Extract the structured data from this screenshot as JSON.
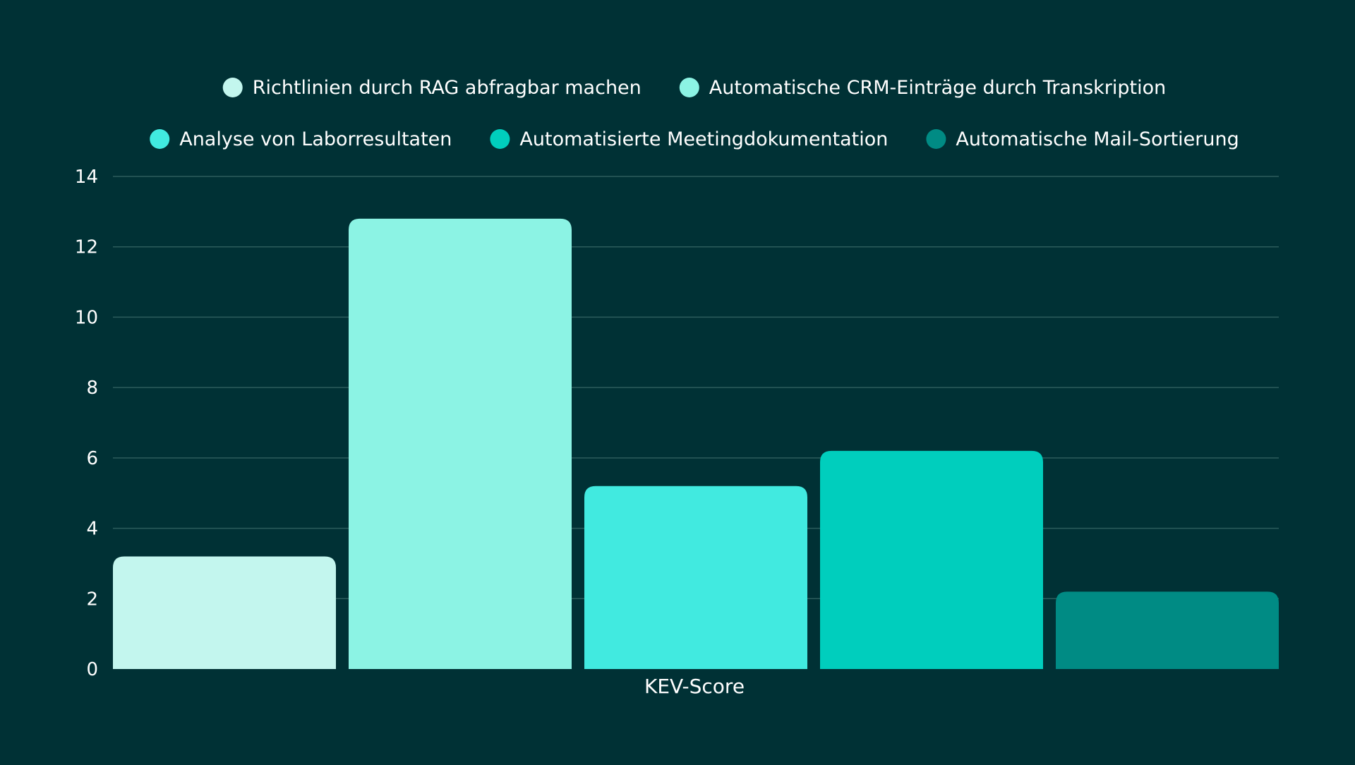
{
  "colors": {
    "background": "#003135",
    "grid": "#2c5c5c",
    "text": "#ffffff"
  },
  "chart_data": {
    "type": "bar",
    "title": "",
    "xlabel": "",
    "ylabel": "",
    "categories": [
      "KEV-Score"
    ],
    "ylim": [
      0,
      14
    ],
    "yticks": [
      0,
      2,
      4,
      6,
      8,
      10,
      12,
      14
    ],
    "grid": true,
    "legend_position": "top",
    "series": [
      {
        "name": "Richtlinien durch RAG abfragbar machen",
        "values": [
          3.2
        ],
        "color": "#c3f6ee"
      },
      {
        "name": "Automatische CRM-Einträge durch Transkription",
        "values": [
          12.8
        ],
        "color": "#8cf3e4"
      },
      {
        "name": "Analyse von Laborresultaten",
        "values": [
          5.2
        ],
        "color": "#41eae0"
      },
      {
        "name": "Automatisierte Meetingdokumentation",
        "values": [
          6.2
        ],
        "color": "#00cebd"
      },
      {
        "name": "Automatische Mail-Sortierung",
        "values": [
          2.2
        ],
        "color": "#008b84"
      }
    ]
  }
}
